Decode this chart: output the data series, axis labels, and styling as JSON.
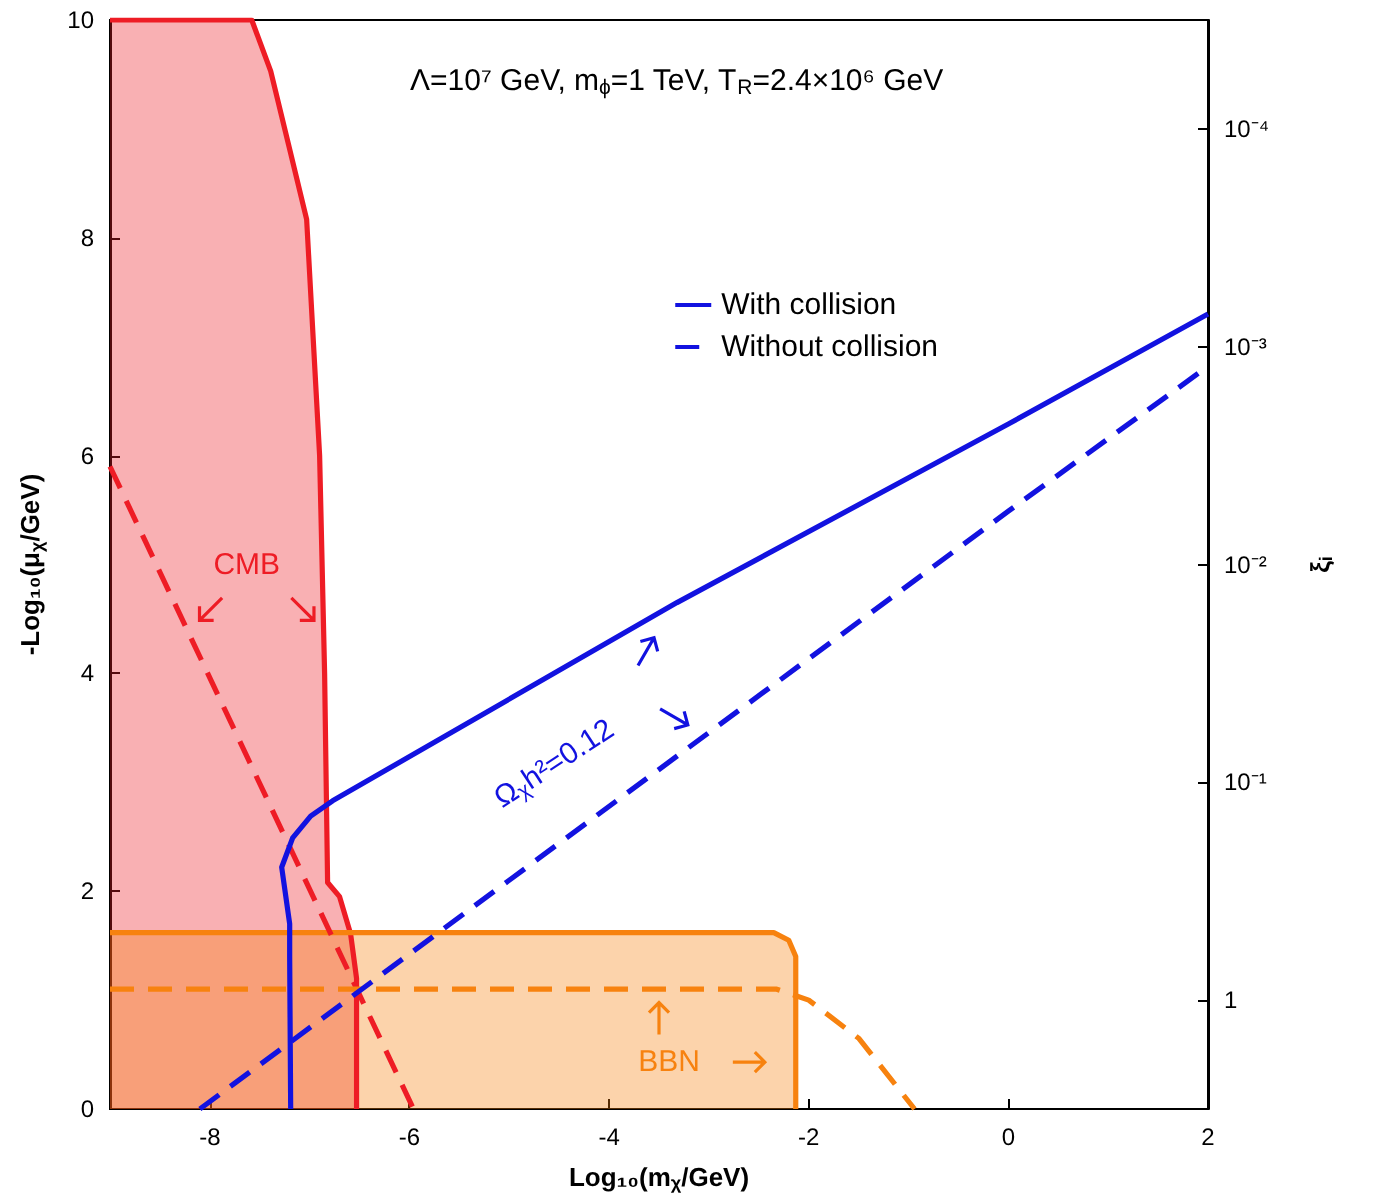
{
  "chart_data": {
    "type": "line",
    "title": "Λ=10⁷ GeV, m$_{ϕ}$=1 TeV, T$_{R}$=2.4×10⁶ GeV",
    "xlabel": "Log₁₀(m$_{χ}$/GeV)",
    "ylabel": "-Log₁₀(μ$_{χ}$/GeV)",
    "y2label": "ξ$_{i}$",
    "xlim": [
      -9,
      2
    ],
    "xticks": [
      -8,
      -6,
      -4,
      -2,
      0,
      2
    ],
    "ylim": [
      0,
      10
    ],
    "yticks": [
      0,
      2,
      4,
      6,
      8,
      10
    ],
    "y2lim": [
      3.16,
      3.16e-05
    ],
    "log": "y2",
    "y2ticks": [
      {
        "value": 0.0001,
        "label": "10⁻⁴"
      },
      {
        "value": 0.001,
        "label": "10⁻³"
      },
      {
        "value": 0.01,
        "label": "10⁻²"
      },
      {
        "value": 0.1,
        "label": "10⁻¹"
      },
      1
    ],
    "grid": false,
    "legend": "top right",
    "marker": "none",
    "series": [
      {
        "type": "area",
        "color": "#ee1c25",
        "x": [
          -9,
          -7.58,
          -7.39,
          -7.21,
          -7.03,
          -6.9,
          -6.85,
          -6.82,
          -6.7,
          -6.59,
          -6.53,
          -6.53
        ],
        "values": [
          10,
          10,
          9.53,
          8.85,
          8.17,
          6.0,
          4.0,
          2.08,
          1.95,
          1.61,
          1.2,
          0
        ]
      },
      {
        "type": "area",
        "color": "#f7820f",
        "x": [
          -9,
          -2.35,
          -2.2,
          -2.13,
          -2.13
        ],
        "values": [
          1.62,
          1.62,
          1.55,
          1.4,
          0
        ]
      },
      {
        "color": "#ee1c25",
        "line_style": "dashed",
        "x": [
          -9,
          -5.96
        ],
        "values": [
          5.9,
          0
        ]
      },
      {
        "color": "#f7820f",
        "line_style": "dashed",
        "x": [
          -9,
          -2.32,
          -2.0,
          -1.5,
          -0.94
        ],
        "values": [
          1.1,
          1.1,
          1.0,
          0.65,
          0
        ]
      },
      {
        "name": "With collision",
        "color": "#1212e0",
        "line_style": "solid",
        "x": [
          -7.19,
          -7.2,
          -7.2,
          -7.28,
          -7.17,
          -6.99,
          -6.77,
          -3.32,
          0,
          2
        ],
        "values": [
          0,
          1.4,
          1.7,
          2.22,
          2.49,
          2.69,
          2.83,
          4.65,
          6.29,
          7.3
        ]
      },
      {
        "name": "Without collision",
        "color": "#1212e0",
        "line_style": "dashed",
        "x": [
          -8.1,
          -3.32,
          0,
          2
        ],
        "values": [
          0,
          3.24,
          5.49,
          6.82
        ]
      }
    ],
    "annotations": [
      "CMB",
      "Ω$_{χ}$h²=0.12",
      "BBN"
    ]
  }
}
